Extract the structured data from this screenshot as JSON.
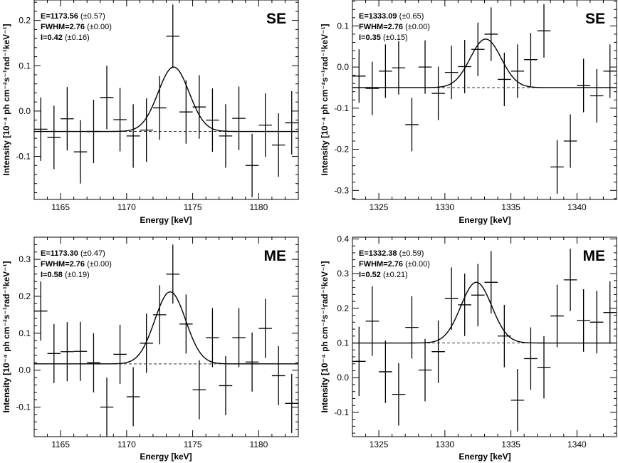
{
  "chart_data": [
    {
      "type": "scatter",
      "panel_label": "SE",
      "annotation": {
        "e": "E=1173.56",
        "e_err": " (±0.57)",
        "fwhm": "FWHM=2.76",
        "fwhm_err": " (±0.00)",
        "i": "I=0.42",
        "i_err": " (±0.16)"
      },
      "xlabel": "Energy [keV]",
      "ylabel": "Intensity [10⁻⁴ ph cm⁻²s⁻¹rad⁻¹keV⁻¹]",
      "xlim": [
        1163,
        1183
      ],
      "ylim": [
        -0.195,
        0.245
      ],
      "xticks": [
        1165,
        1170,
        1175,
        1180
      ],
      "yticks": [
        -0.1,
        0.0,
        0.1,
        0.2
      ],
      "ytick_labels": [
        "-0.1",
        "0.0",
        "0.1",
        "0.2"
      ],
      "model": {
        "center": 1173.56,
        "fwhm": 2.76,
        "amplitude": 0.142,
        "baseline": -0.045
      },
      "points": [
        {
          "x": 1163.5,
          "y": -0.04,
          "err": 0.07
        },
        {
          "x": 1164.5,
          "y": -0.058,
          "err": 0.07
        },
        {
          "x": 1165.5,
          "y": -0.017,
          "err": 0.07
        },
        {
          "x": 1166.5,
          "y": -0.09,
          "err": 0.07
        },
        {
          "x": 1167.5,
          "y": -0.045,
          "err": 0.07
        },
        {
          "x": 1168.5,
          "y": 0.03,
          "err": 0.07
        },
        {
          "x": 1169.5,
          "y": -0.019,
          "err": 0.07
        },
        {
          "x": 1170.5,
          "y": -0.055,
          "err": 0.07
        },
        {
          "x": 1171.5,
          "y": -0.042,
          "err": 0.07
        },
        {
          "x": 1172.5,
          "y": 0.007,
          "err": 0.07
        },
        {
          "x": 1173.5,
          "y": 0.165,
          "err": 0.07
        },
        {
          "x": 1174.5,
          "y": -0.002,
          "err": 0.07
        },
        {
          "x": 1175.5,
          "y": 0.009,
          "err": 0.07
        },
        {
          "x": 1176.5,
          "y": -0.02,
          "err": 0.07
        },
        {
          "x": 1177.5,
          "y": -0.055,
          "err": 0.07
        },
        {
          "x": 1178.5,
          "y": -0.016,
          "err": 0.07
        },
        {
          "x": 1179.5,
          "y": -0.12,
          "err": 0.07
        },
        {
          "x": 1180.5,
          "y": -0.031,
          "err": 0.07
        },
        {
          "x": 1181.5,
          "y": -0.075,
          "err": 0.07
        },
        {
          "x": 1182.5,
          "y": -0.026,
          "err": 0.07
        }
      ]
    },
    {
      "type": "scatter",
      "panel_label": "SE",
      "annotation": {
        "e": "E=1333.09",
        "e_err": " (±0.65)",
        "fwhm": "FWHM=2.76",
        "fwhm_err": " (±0.00)",
        "i": "I=0.35",
        "i_err": " (±0.15)"
      },
      "xlabel": "Energy [keV]",
      "ylabel": "Intensity [10⁻⁴ ph cm⁻²s⁻¹rad⁻¹keV⁻¹]",
      "xlim": [
        1323,
        1343
      ],
      "ylim": [
        -0.322,
        0.163
      ],
      "xticks": [
        1325,
        1330,
        1335,
        1340
      ],
      "yticks": [
        -0.3,
        -0.2,
        -0.1,
        0.0,
        0.1
      ],
      "ytick_labels": [
        "-0.3",
        "-0.2",
        "-0.1",
        "0.0",
        "0.1"
      ],
      "model": {
        "center": 1333.09,
        "fwhm": 2.76,
        "amplitude": 0.118,
        "baseline": -0.05
      },
      "points": [
        {
          "x": 1323.5,
          "y": -0.022,
          "err": 0.065
        },
        {
          "x": 1324.5,
          "y": -0.052,
          "err": 0.065
        },
        {
          "x": 1325.5,
          "y": -0.01,
          "err": 0.065
        },
        {
          "x": 1326.5,
          "y": -0.002,
          "err": 0.065
        },
        {
          "x": 1327.5,
          "y": -0.14,
          "err": 0.065
        },
        {
          "x": 1328.5,
          "y": 0.0,
          "err": 0.065
        },
        {
          "x": 1329.5,
          "y": -0.064,
          "err": 0.065
        },
        {
          "x": 1330.5,
          "y": -0.013,
          "err": 0.065
        },
        {
          "x": 1331.5,
          "y": 0.001,
          "err": 0.065
        },
        {
          "x": 1332.5,
          "y": 0.043,
          "err": 0.065
        },
        {
          "x": 1333.5,
          "y": 0.08,
          "err": 0.065
        },
        {
          "x": 1334.5,
          "y": -0.03,
          "err": 0.065
        },
        {
          "x": 1335.5,
          "y": -0.01,
          "err": 0.065
        },
        {
          "x": 1336.5,
          "y": 0.018,
          "err": 0.065
        },
        {
          "x": 1337.5,
          "y": 0.088,
          "err": 0.065
        },
        {
          "x": 1338.5,
          "y": -0.243,
          "err": 0.065
        },
        {
          "x": 1339.5,
          "y": -0.18,
          "err": 0.065
        },
        {
          "x": 1340.5,
          "y": -0.045,
          "err": 0.065
        },
        {
          "x": 1341.5,
          "y": -0.07,
          "err": 0.065
        },
        {
          "x": 1342.5,
          "y": -0.01,
          "err": 0.065
        }
      ]
    },
    {
      "type": "scatter",
      "panel_label": "ME",
      "annotation": {
        "e": "E=1173.30",
        "e_err": " (±0.47)",
        "fwhm": "FWHM=2.76",
        "fwhm_err": " (±0.00)",
        "i": "I=0.58",
        "i_err": " (±0.19)"
      },
      "xlabel": "Energy [keV]",
      "ylabel": "Intensity [10⁻⁴ ph cm⁻²s⁻¹rad⁻¹keV⁻¹]",
      "xlim": [
        1163,
        1183
      ],
      "ylim": [
        -0.18,
        0.36
      ],
      "xticks": [
        1165,
        1170,
        1175,
        1180
      ],
      "yticks": [
        -0.1,
        0.0,
        0.1,
        0.2,
        0.3
      ],
      "ytick_labels": [
        "-0.1",
        "0.0",
        "0.1",
        "0.2",
        "0.3"
      ],
      "model": {
        "center": 1173.3,
        "fwhm": 2.76,
        "amplitude": 0.195,
        "baseline": 0.017
      },
      "points": [
        {
          "x": 1163.5,
          "y": 0.16,
          "err": 0.08
        },
        {
          "x": 1164.5,
          "y": 0.045,
          "err": 0.08
        },
        {
          "x": 1165.5,
          "y": 0.05,
          "err": 0.08
        },
        {
          "x": 1166.5,
          "y": 0.051,
          "err": 0.08
        },
        {
          "x": 1167.5,
          "y": 0.02,
          "err": 0.08
        },
        {
          "x": 1168.5,
          "y": -0.1,
          "err": 0.08
        },
        {
          "x": 1169.5,
          "y": 0.043,
          "err": 0.08
        },
        {
          "x": 1170.5,
          "y": -0.072,
          "err": 0.08
        },
        {
          "x": 1171.5,
          "y": 0.073,
          "err": 0.08
        },
        {
          "x": 1172.5,
          "y": 0.15,
          "err": 0.08
        },
        {
          "x": 1173.5,
          "y": 0.26,
          "err": 0.08
        },
        {
          "x": 1174.5,
          "y": 0.125,
          "err": 0.08
        },
        {
          "x": 1175.5,
          "y": -0.053,
          "err": 0.08
        },
        {
          "x": 1176.5,
          "y": 0.088,
          "err": 0.08
        },
        {
          "x": 1177.5,
          "y": -0.042,
          "err": 0.08
        },
        {
          "x": 1178.5,
          "y": 0.088,
          "err": 0.08
        },
        {
          "x": 1179.5,
          "y": 0.022,
          "err": 0.08
        },
        {
          "x": 1180.5,
          "y": 0.113,
          "err": 0.08
        },
        {
          "x": 1181.5,
          "y": -0.015,
          "err": 0.08
        },
        {
          "x": 1182.5,
          "y": -0.09,
          "err": 0.08
        }
      ]
    },
    {
      "type": "scatter",
      "panel_label": "ME",
      "annotation": {
        "e": "E=1332.38",
        "e_err": " (±0.59)",
        "fwhm": "FWHM=2.76",
        "fwhm_err": " (±0.00)",
        "i": "I=0.52",
        "i_err": " (±0.21)"
      },
      "xlabel": "Energy [keV]",
      "ylabel": "Intensity [10⁻⁴ ph cm⁻²s⁻¹rad⁻¹keV⁻¹]",
      "xlim": [
        1323,
        1343
      ],
      "ylim": [
        -0.17,
        0.405
      ],
      "xticks": [
        1325,
        1330,
        1335,
        1340
      ],
      "yticks": [
        -0.1,
        0.0,
        0.1,
        0.2,
        0.3,
        0.4
      ],
      "ytick_labels": [
        "-0.1",
        "0.0",
        "0.1",
        "0.2",
        "0.3",
        "0.4"
      ],
      "model": {
        "center": 1332.38,
        "fwhm": 2.76,
        "amplitude": 0.175,
        "baseline": 0.1
      },
      "points": [
        {
          "x": 1323.5,
          "y": 0.047,
          "err": 0.1
        },
        {
          "x": 1324.5,
          "y": 0.163,
          "err": 0.1
        },
        {
          "x": 1325.5,
          "y": 0.017,
          "err": 0.09
        },
        {
          "x": 1326.5,
          "y": -0.048,
          "err": 0.09
        },
        {
          "x": 1327.5,
          "y": 0.145,
          "err": 0.09
        },
        {
          "x": 1328.5,
          "y": 0.022,
          "err": 0.09
        },
        {
          "x": 1329.5,
          "y": 0.075,
          "err": 0.09
        },
        {
          "x": 1330.5,
          "y": 0.228,
          "err": 0.09
        },
        {
          "x": 1331.5,
          "y": 0.21,
          "err": 0.09
        },
        {
          "x": 1332.5,
          "y": 0.238,
          "err": 0.09
        },
        {
          "x": 1333.5,
          "y": 0.275,
          "err": 0.09
        },
        {
          "x": 1334.5,
          "y": 0.12,
          "err": 0.09
        },
        {
          "x": 1335.5,
          "y": -0.065,
          "err": 0.09
        },
        {
          "x": 1336.5,
          "y": 0.055,
          "err": 0.09
        },
        {
          "x": 1337.5,
          "y": 0.03,
          "err": 0.09
        },
        {
          "x": 1338.5,
          "y": 0.178,
          "err": 0.09
        },
        {
          "x": 1339.5,
          "y": 0.282,
          "err": 0.09
        },
        {
          "x": 1340.5,
          "y": 0.165,
          "err": 0.09
        },
        {
          "x": 1341.5,
          "y": 0.16,
          "err": 0.09
        },
        {
          "x": 1342.5,
          "y": 0.188,
          "err": 0.09
        }
      ]
    }
  ]
}
